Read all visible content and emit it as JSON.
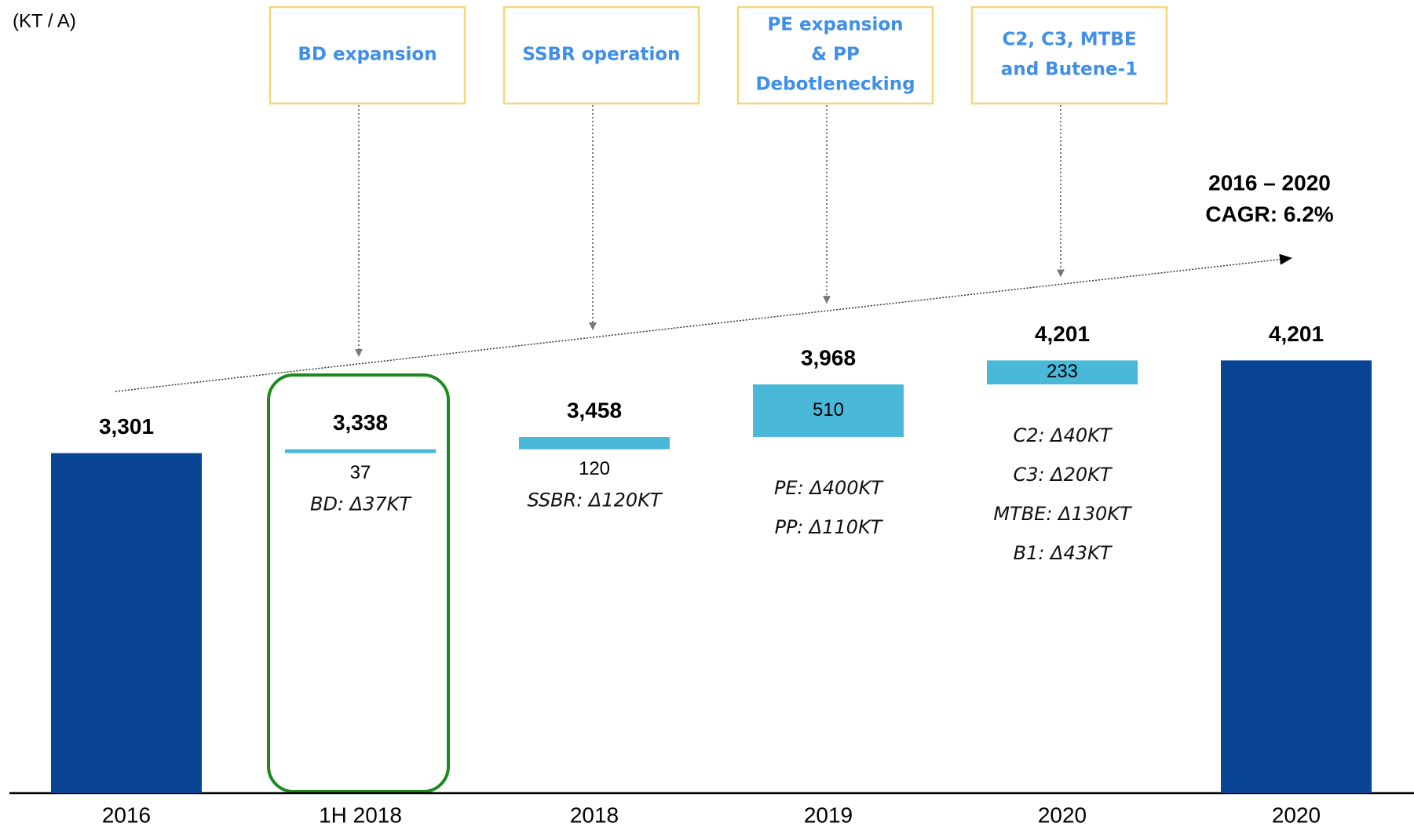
{
  "chart_data": {
    "type": "waterfall",
    "unit_label": "(KT / A)",
    "categories": [
      "2016",
      "1H 2018",
      "2018",
      "2019",
      "2020",
      "2020"
    ],
    "values": [
      3301,
      37,
      120,
      510,
      233,
      4201
    ],
    "kinds": [
      "total",
      "increase",
      "increase",
      "increase",
      "increase",
      "total"
    ],
    "total_labels": [
      "3,301",
      "3,338",
      "3,458",
      "3,968",
      "4,201",
      "4,201"
    ],
    "total_color": "#0a4595",
    "increase_color": "#4ab8d8",
    "ylim": [
      0,
      7700
    ],
    "boxes": [
      null,
      [
        "BD expansion"
      ],
      [
        "SSBR operation"
      ],
      [
        "PE expansion",
        "& PP",
        "Debotlenecking"
      ],
      [
        "C2, C3, MTBE",
        "and Butene-1"
      ],
      null
    ],
    "notes": [
      null,
      [
        "BD: Δ37KT"
      ],
      [
        "SSBR: Δ120KT"
      ],
      [
        "PE: Δ400KT",
        "PP: Δ110KT"
      ],
      [
        "C2: Δ40KT",
        "C3: Δ20KT",
        "MTBE: Δ130KT",
        "B1: Δ43KT"
      ],
      null
    ],
    "cagr": [
      "2016 – 2020",
      "CAGR: 6.2%"
    ]
  }
}
